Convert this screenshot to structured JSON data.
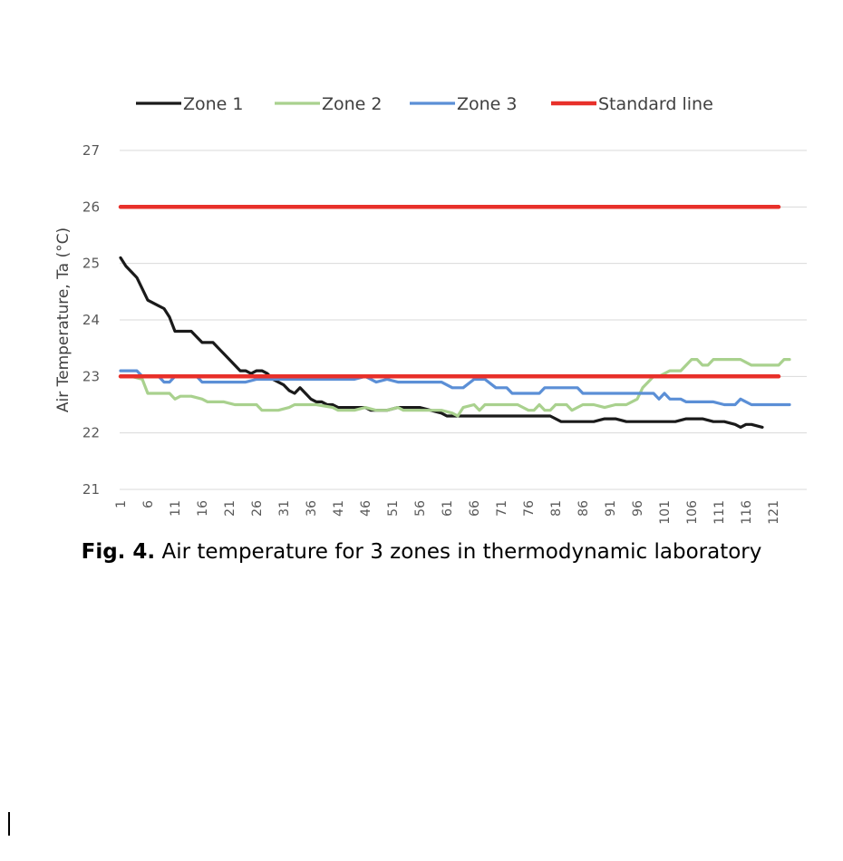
{
  "caption": {
    "label": "Fig. 4.",
    "text": "Air temperature for 3 zones in thermodynamic laboratory"
  },
  "chart_data": {
    "type": "line",
    "xlabel": "",
    "ylabel": "Air Temperature, Ta (°C)",
    "ylim": [
      21,
      27
    ],
    "yticks": [
      "21",
      "22",
      "23",
      "24",
      "25",
      "26",
      "27"
    ],
    "xlim": [
      1,
      124
    ],
    "xticks": [
      "1",
      "6",
      "11",
      "16",
      "21",
      "26",
      "31",
      "36",
      "41",
      "46",
      "51",
      "56",
      "61",
      "66",
      "71",
      "76",
      "81",
      "86",
      "91",
      "96",
      "101",
      "106",
      "111",
      "116",
      "121"
    ],
    "grid": "horizontal",
    "legend_position": "top",
    "series": [
      {
        "name": "Zone 1",
        "color": "#1a1a1a",
        "points": [
          [
            1,
            25.1
          ],
          [
            2,
            24.95
          ],
          [
            3,
            24.85
          ],
          [
            4,
            24.75
          ],
          [
            5,
            24.55
          ],
          [
            6,
            24.35
          ],
          [
            7,
            24.3
          ],
          [
            8,
            24.25
          ],
          [
            9,
            24.2
          ],
          [
            10,
            24.05
          ],
          [
            11,
            23.8
          ],
          [
            12,
            23.8
          ],
          [
            13,
            23.8
          ],
          [
            14,
            23.8
          ],
          [
            15,
            23.7
          ],
          [
            16,
            23.6
          ],
          [
            17,
            23.6
          ],
          [
            18,
            23.6
          ],
          [
            19,
            23.5
          ],
          [
            20,
            23.4
          ],
          [
            21,
            23.3
          ],
          [
            22,
            23.2
          ],
          [
            23,
            23.1
          ],
          [
            24,
            23.1
          ],
          [
            25,
            23.05
          ],
          [
            26,
            23.1
          ],
          [
            27,
            23.1
          ],
          [
            28,
            23.05
          ],
          [
            29,
            22.95
          ],
          [
            30,
            22.9
          ],
          [
            31,
            22.85
          ],
          [
            32,
            22.75
          ],
          [
            33,
            22.7
          ],
          [
            34,
            22.8
          ],
          [
            35,
            22.7
          ],
          [
            36,
            22.6
          ],
          [
            37,
            22.55
          ],
          [
            38,
            22.55
          ],
          [
            39,
            22.5
          ],
          [
            40,
            22.5
          ],
          [
            41,
            22.45
          ],
          [
            42,
            22.45
          ],
          [
            44,
            22.45
          ],
          [
            46,
            22.45
          ],
          [
            47,
            22.4
          ],
          [
            48,
            22.4
          ],
          [
            50,
            22.4
          ],
          [
            52,
            22.45
          ],
          [
            54,
            22.45
          ],
          [
            56,
            22.45
          ],
          [
            58,
            22.4
          ],
          [
            60,
            22.35
          ],
          [
            61,
            22.3
          ],
          [
            62,
            22.3
          ],
          [
            64,
            22.3
          ],
          [
            66,
            22.3
          ],
          [
            70,
            22.3
          ],
          [
            75,
            22.3
          ],
          [
            80,
            22.3
          ],
          [
            82,
            22.2
          ],
          [
            85,
            22.2
          ],
          [
            88,
            22.2
          ],
          [
            90,
            22.25
          ],
          [
            92,
            22.25
          ],
          [
            94,
            22.2
          ],
          [
            98,
            22.2
          ],
          [
            100,
            22.2
          ],
          [
            103,
            22.2
          ],
          [
            105,
            22.25
          ],
          [
            108,
            22.25
          ],
          [
            110,
            22.2
          ],
          [
            112,
            22.2
          ],
          [
            114,
            22.15
          ],
          [
            115,
            22.1
          ],
          [
            116,
            22.15
          ],
          [
            117,
            22.15
          ],
          [
            119,
            22.1
          ]
        ]
      },
      {
        "name": "Zone 2",
        "color": "#a9d18e",
        "points": [
          [
            1,
            23.0
          ],
          [
            3,
            23.0
          ],
          [
            5,
            22.95
          ],
          [
            6,
            22.7
          ],
          [
            8,
            22.7
          ],
          [
            10,
            22.7
          ],
          [
            11,
            22.6
          ],
          [
            12,
            22.65
          ],
          [
            14,
            22.65
          ],
          [
            16,
            22.6
          ],
          [
            17,
            22.55
          ],
          [
            20,
            22.55
          ],
          [
            22,
            22.5
          ],
          [
            26,
            22.5
          ],
          [
            27,
            22.4
          ],
          [
            30,
            22.4
          ],
          [
            32,
            22.45
          ],
          [
            33,
            22.5
          ],
          [
            37,
            22.5
          ],
          [
            40,
            22.45
          ],
          [
            41,
            22.4
          ],
          [
            44,
            22.4
          ],
          [
            46,
            22.45
          ],
          [
            48,
            22.4
          ],
          [
            50,
            22.4
          ],
          [
            52,
            22.45
          ],
          [
            53,
            22.4
          ],
          [
            58,
            22.4
          ],
          [
            60,
            22.4
          ],
          [
            62,
            22.35
          ],
          [
            63,
            22.3
          ],
          [
            64,
            22.45
          ],
          [
            66,
            22.5
          ],
          [
            67,
            22.4
          ],
          [
            68,
            22.5
          ],
          [
            70,
            22.5
          ],
          [
            74,
            22.5
          ],
          [
            76,
            22.4
          ],
          [
            77,
            22.4
          ],
          [
            78,
            22.5
          ],
          [
            79,
            22.4
          ],
          [
            80,
            22.4
          ],
          [
            81,
            22.5
          ],
          [
            83,
            22.5
          ],
          [
            84,
            22.4
          ],
          [
            86,
            22.5
          ],
          [
            88,
            22.5
          ],
          [
            90,
            22.45
          ],
          [
            92,
            22.5
          ],
          [
            94,
            22.5
          ],
          [
            96,
            22.6
          ],
          [
            97,
            22.8
          ],
          [
            98,
            22.9
          ],
          [
            99,
            23.0
          ],
          [
            100,
            23.0
          ],
          [
            102,
            23.1
          ],
          [
            104,
            23.1
          ],
          [
            105,
            23.2
          ],
          [
            106,
            23.3
          ],
          [
            107,
            23.3
          ],
          [
            108,
            23.2
          ],
          [
            109,
            23.2
          ],
          [
            110,
            23.3
          ],
          [
            112,
            23.3
          ],
          [
            115,
            23.3
          ],
          [
            116,
            23.25
          ],
          [
            117,
            23.2
          ],
          [
            122,
            23.2
          ],
          [
            123,
            23.3
          ],
          [
            124,
            23.3
          ]
        ]
      },
      {
        "name": "Zone 3",
        "color": "#5b8fd6",
        "points": [
          [
            1,
            23.1
          ],
          [
            3,
            23.1
          ],
          [
            4,
            23.1
          ],
          [
            5,
            23.0
          ],
          [
            8,
            23.0
          ],
          [
            9,
            22.9
          ],
          [
            10,
            22.9
          ],
          [
            11,
            23.0
          ],
          [
            15,
            23.0
          ],
          [
            16,
            22.9
          ],
          [
            24,
            22.9
          ],
          [
            26,
            22.95
          ],
          [
            36,
            22.95
          ],
          [
            44,
            22.95
          ],
          [
            46,
            23.0
          ],
          [
            48,
            22.9
          ],
          [
            50,
            22.95
          ],
          [
            52,
            22.9
          ],
          [
            60,
            22.9
          ],
          [
            62,
            22.8
          ],
          [
            64,
            22.8
          ],
          [
            66,
            22.95
          ],
          [
            68,
            22.95
          ],
          [
            70,
            22.8
          ],
          [
            72,
            22.8
          ],
          [
            73,
            22.7
          ],
          [
            76,
            22.7
          ],
          [
            78,
            22.7
          ],
          [
            79,
            22.8
          ],
          [
            85,
            22.8
          ],
          [
            86,
            22.7
          ],
          [
            96,
            22.7
          ],
          [
            99,
            22.7
          ],
          [
            100,
            22.6
          ],
          [
            101,
            22.7
          ],
          [
            102,
            22.6
          ],
          [
            104,
            22.6
          ],
          [
            105,
            22.55
          ],
          [
            110,
            22.55
          ],
          [
            112,
            22.5
          ],
          [
            114,
            22.5
          ],
          [
            115,
            22.6
          ],
          [
            116,
            22.55
          ],
          [
            117,
            22.5
          ],
          [
            124,
            22.5
          ]
        ]
      },
      {
        "name": "Standard line",
        "color": "#e8302a",
        "points": [
          [
            1,
            23.0
          ],
          [
            122,
            23.0
          ]
        ]
      },
      {
        "name": "Standard line (upper)",
        "color": "#e8302a",
        "legend": false,
        "points": [
          [
            1,
            26.0
          ],
          [
            122,
            26.0
          ]
        ]
      }
    ]
  }
}
